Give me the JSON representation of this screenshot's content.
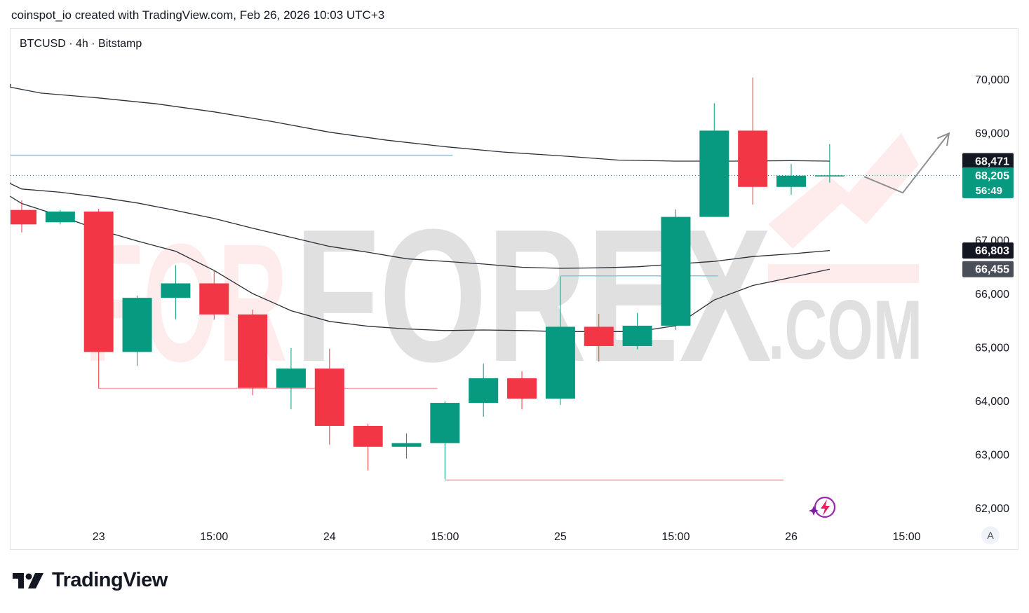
{
  "header": {
    "attribution": "coinspot_io created with TradingView.com, Feb 26, 2026 10:03 UTC+3"
  },
  "symbol_line": "BTCUSD · 4h · Bitstamp",
  "footer": {
    "brand": "TradingView"
  },
  "auto_scale_label": "A",
  "watermark": {
    "text1": "FOR",
    "text2": "FOREX",
    "text3": ".COM"
  },
  "colors": {
    "up": "#089981",
    "down": "#f23645",
    "ma": "#2a2e39",
    "support": "#f7a1a9",
    "resistance": "#7ecbd2",
    "label_dark": "#131722",
    "label_grey": "#4a4e58"
  },
  "chart_data": {
    "type": "candlestick",
    "symbol": "BTCUSD",
    "timeframe": "4h",
    "exchange": "Bitstamp",
    "ylim": [
      61750,
      70650
    ],
    "y_ticks": [
      62000,
      63000,
      64000,
      65000,
      66000,
      67000,
      69000,
      70000
    ],
    "y_tick_labels": [
      "62,000",
      "63,000",
      "64,000",
      "65,000",
      "66,000",
      "67,000",
      "69,000",
      "70,000"
    ],
    "x_ticks": [
      {
        "i": 2,
        "label": "23"
      },
      {
        "i": 5,
        "label": "15:00"
      },
      {
        "i": 8,
        "label": "24"
      },
      {
        "i": 11,
        "label": "15:00"
      },
      {
        "i": 14,
        "label": "25"
      },
      {
        "i": 17,
        "label": "15:00"
      },
      {
        "i": 20,
        "label": "26"
      },
      {
        "i": 23,
        "label": "15:00"
      }
    ],
    "candles": [
      {
        "o": 67560,
        "h": 67740,
        "l": 67140,
        "c": 67290
      },
      {
        "o": 67330,
        "h": 67560,
        "l": 67290,
        "c": 67530
      },
      {
        "o": 67530,
        "h": 67580,
        "l": 64230,
        "c": 64910
      },
      {
        "o": 64910,
        "h": 65960,
        "l": 64650,
        "c": 65920
      },
      {
        "o": 65920,
        "h": 66530,
        "l": 65520,
        "c": 66190
      },
      {
        "o": 66190,
        "h": 66430,
        "l": 65510,
        "c": 65610
      },
      {
        "o": 65610,
        "h": 65700,
        "l": 64100,
        "c": 64240
      },
      {
        "o": 64240,
        "h": 64980,
        "l": 63840,
        "c": 64600
      },
      {
        "o": 64600,
        "h": 64970,
        "l": 63180,
        "c": 63530
      },
      {
        "o": 63530,
        "h": 63570,
        "l": 62700,
        "c": 63140
      },
      {
        "o": 63140,
        "h": 63390,
        "l": 62920,
        "c": 63210
      },
      {
        "o": 63210,
        "h": 63990,
        "l": 62530,
        "c": 63960
      },
      {
        "o": 63960,
        "h": 64690,
        "l": 63700,
        "c": 64420
      },
      {
        "o": 64420,
        "h": 64550,
        "l": 63840,
        "c": 64040
      },
      {
        "o": 64040,
        "h": 66320,
        "l": 63920,
        "c": 65380
      },
      {
        "o": 65380,
        "h": 65620,
        "l": 64730,
        "c": 65020
      },
      {
        "o": 65020,
        "h": 65640,
        "l": 64960,
        "c": 65400
      },
      {
        "o": 65400,
        "h": 67570,
        "l": 65320,
        "c": 67430
      },
      {
        "o": 67430,
        "h": 69550,
        "l": 67430,
        "c": 69040
      },
      {
        "o": 69040,
        "h": 70030,
        "l": 67660,
        "c": 67990
      },
      {
        "o": 67990,
        "h": 68420,
        "l": 67840,
        "c": 68200
      },
      {
        "o": 68200,
        "h": 68790,
        "l": 68070,
        "c": 68205
      }
    ],
    "moving_averages": [
      {
        "name": "MA 1",
        "last": 68471,
        "points": [
          [
            -2.1,
            69910
          ],
          [
            -1.0,
            69850
          ],
          [
            0.5,
            69740
          ],
          [
            2.0,
            69650
          ],
          [
            3.5,
            69540
          ],
          [
            5.0,
            69390
          ],
          [
            6.5,
            69210
          ],
          [
            8.0,
            69010
          ],
          [
            9.5,
            68860
          ],
          [
            11.0,
            68740
          ],
          [
            12.5,
            68640
          ],
          [
            14.0,
            68570
          ],
          [
            15.5,
            68490
          ],
          [
            17.0,
            68470
          ],
          [
            18.5,
            68470
          ],
          [
            20.0,
            68480
          ],
          [
            21.0,
            68471
          ]
        ]
      },
      {
        "name": "MA 2",
        "last": 66803,
        "points": [
          [
            -2.1,
            68070
          ],
          [
            -1.0,
            68050
          ],
          [
            0.0,
            67950
          ],
          [
            1.0,
            67890
          ],
          [
            2.0,
            67800
          ],
          [
            3.0,
            67690
          ],
          [
            4.0,
            67550
          ],
          [
            5.0,
            67400
          ],
          [
            6.0,
            67220
          ],
          [
            7.0,
            67050
          ],
          [
            8.0,
            66880
          ],
          [
            9.0,
            66770
          ],
          [
            10.0,
            66650
          ],
          [
            11.0,
            66600
          ],
          [
            12.0,
            66550
          ],
          [
            13.0,
            66490
          ],
          [
            14.0,
            66470
          ],
          [
            15.0,
            66480
          ],
          [
            16.0,
            66500
          ],
          [
            17.0,
            66550
          ],
          [
            18.0,
            66600
          ],
          [
            19.0,
            66690
          ],
          [
            20.0,
            66740
          ],
          [
            21.0,
            66803
          ]
        ]
      },
      {
        "name": "MA 3",
        "last": 66455,
        "points": [
          [
            -2.1,
            67820
          ],
          [
            -1.0,
            67810
          ],
          [
            0.0,
            67680
          ],
          [
            1.0,
            67450
          ],
          [
            2.0,
            67190
          ],
          [
            3.0,
            66980
          ],
          [
            4.0,
            66790
          ],
          [
            5.0,
            66430
          ],
          [
            6.0,
            66000
          ],
          [
            7.0,
            65680
          ],
          [
            8.0,
            65480
          ],
          [
            9.0,
            65390
          ],
          [
            10.0,
            65340
          ],
          [
            11.0,
            65310
          ],
          [
            12.0,
            65320
          ],
          [
            13.0,
            65310
          ],
          [
            14.0,
            65290
          ],
          [
            15.0,
            65290
          ],
          [
            16.0,
            65290
          ],
          [
            17.0,
            65400
          ],
          [
            18.0,
            65880
          ],
          [
            19.0,
            66150
          ],
          [
            20.0,
            66300
          ],
          [
            21.0,
            66455
          ]
        ]
      }
    ],
    "horizontal_levels": [
      {
        "kind": "resistance",
        "price": 68580,
        "from": -2.1,
        "to": 11.2
      },
      {
        "kind": "resistance",
        "price": 66330,
        "from": 14.0,
        "to": 18.1
      },
      {
        "kind": "support",
        "price": 64230,
        "from": 2.0,
        "to": 10.8
      },
      {
        "kind": "support",
        "price": 62520,
        "from": 11.0,
        "to": 19.8
      }
    ],
    "forecast_path": [
      [
        21.9,
        68180
      ],
      [
        22.9,
        67880
      ],
      [
        24.1,
        68990
      ]
    ],
    "price_labels": [
      {
        "value": "68,471",
        "price": 68471,
        "style": "dark"
      },
      {
        "value": "68,205",
        "price": 68205,
        "style": "green",
        "sub": "56:49"
      },
      {
        "value": "66,803",
        "price": 66803,
        "style": "dark"
      },
      {
        "value": "66,455",
        "price": 66455,
        "style": "grey"
      }
    ]
  }
}
